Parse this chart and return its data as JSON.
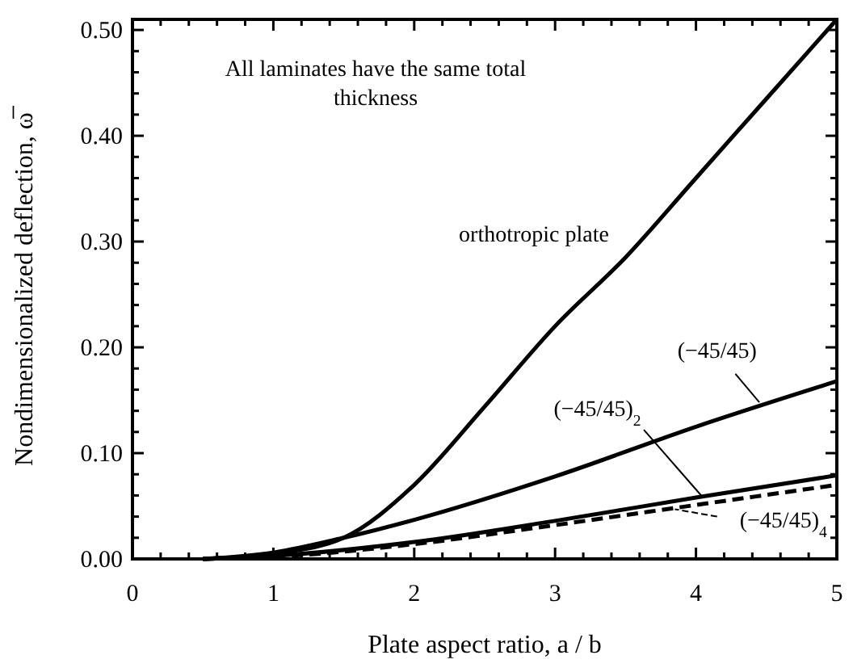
{
  "chart_data": {
    "type": "line",
    "xlabel": "Plate aspect ratio, a / b",
    "ylabel": "Nondimensionalized deflection, ω̅",
    "annotations": [
      "All laminates have the same total thickness"
    ],
    "xlim": [
      0,
      5
    ],
    "ylim": [
      0,
      0.51
    ],
    "xticks": [
      0,
      {
        "value": 0.2,
        "label": null
      },
      {
        "value": 0.4,
        "label": null
      },
      {
        "value": 0.6,
        "label": null
      },
      {
        "value": 0.8,
        "label": null
      },
      1,
      {
        "value": 1.2,
        "label": null
      },
      {
        "value": 1.4,
        "label": null
      },
      {
        "value": 1.6,
        "label": null
      },
      {
        "value": 1.8,
        "label": null
      },
      2,
      {
        "value": 2.2,
        "label": null
      },
      {
        "value": 2.4,
        "label": null
      },
      {
        "value": 2.6,
        "label": null
      },
      {
        "value": 2.8,
        "label": null
      },
      3,
      {
        "value": 3.2,
        "label": null
      },
      {
        "value": 3.4,
        "label": null
      },
      {
        "value": 3.6,
        "label": null
      },
      {
        "value": 3.8,
        "label": null
      },
      4,
      {
        "value": 4.2,
        "label": null
      },
      {
        "value": 4.4,
        "label": null
      },
      {
        "value": 4.6,
        "label": null
      },
      {
        "value": 4.8,
        "label": null
      },
      5
    ],
    "yticks": [
      {
        "value": 0,
        "label": "0.00"
      },
      {
        "value": 0.02,
        "label": null
      },
      {
        "value": 0.04,
        "label": null
      },
      {
        "value": 0.06,
        "label": null
      },
      {
        "value": 0.08,
        "label": null
      },
      {
        "value": 0.1,
        "label": "0.10"
      },
      {
        "value": 0.12,
        "label": null
      },
      {
        "value": 0.14,
        "label": null
      },
      {
        "value": 0.16,
        "label": null
      },
      {
        "value": 0.18,
        "label": null
      },
      {
        "value": 0.2,
        "label": "0.20"
      },
      {
        "value": 0.22,
        "label": null
      },
      {
        "value": 0.24,
        "label": null
      },
      {
        "value": 0.26,
        "label": null
      },
      {
        "value": 0.28,
        "label": null
      },
      {
        "value": 0.3,
        "label": "0.30"
      },
      {
        "value": 0.32,
        "label": null
      },
      {
        "value": 0.34,
        "label": null
      },
      {
        "value": 0.36,
        "label": null
      },
      {
        "value": 0.38,
        "label": null
      },
      {
        "value": 0.4,
        "label": "0.40"
      },
      {
        "value": 0.42,
        "label": null
      },
      {
        "value": 0.44,
        "label": null
      },
      {
        "value": 0.46,
        "label": null
      },
      {
        "value": 0.48,
        "label": null
      },
      {
        "value": 0.5,
        "label": "0.50"
      }
    ],
    "grid": false,
    "series": [
      {
        "name": "orthotropic plate",
        "color": "#000000",
        "line_style": "solid",
        "x": [
          0.5,
          1,
          1.5,
          2,
          2.5,
          3,
          3.5,
          4,
          4.5,
          5
        ],
        "values": [
          0,
          0.005,
          0.02,
          0.07,
          0.144,
          0.22,
          0.285,
          0.36,
          0.435,
          0.51
        ]
      },
      {
        "name": "(−45/45)",
        "color": "#000000",
        "line_style": "solid",
        "x": [
          0.5,
          1,
          1.5,
          2,
          3,
          4,
          5
        ],
        "values": [
          0,
          0.006,
          0.02,
          0.037,
          0.078,
          0.125,
          0.168
        ]
      },
      {
        "name": "(−45/45)$_{2}$",
        "color": "#000000",
        "line_style": "solid",
        "x": [
          0.5,
          1,
          2,
          3,
          4,
          5
        ],
        "values": [
          0,
          0.003,
          0.016,
          0.036,
          0.058,
          0.079
        ]
      },
      {
        "name": "(−45/45)$_{4}$",
        "color": "#000000",
        "line_style": "dashed",
        "x": [
          0.5,
          1,
          2,
          3,
          4,
          5
        ],
        "values": [
          0,
          0.002,
          0.014,
          0.032,
          0.051,
          0.07
        ]
      }
    ]
  }
}
